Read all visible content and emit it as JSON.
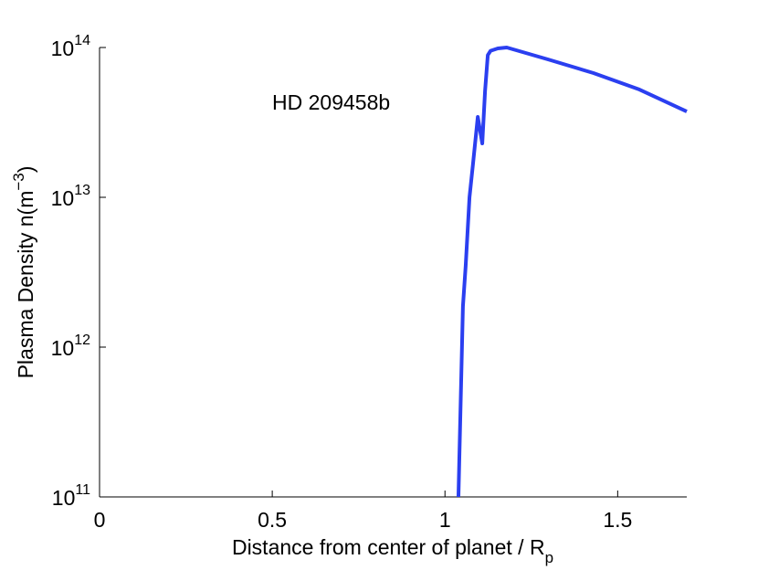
{
  "chart_data": {
    "type": "line",
    "annotation": "HD 209458b",
    "xlabel": {
      "text": "Distance from center of planet / R",
      "sub": "p"
    },
    "ylabel": {
      "text": "Plasma Density n(m",
      "sup": "−3",
      "end": ")"
    },
    "x": [
      1.039,
      1.052,
      1.06,
      1.071,
      1.081,
      1.095,
      1.108,
      1.116,
      1.124,
      1.132,
      1.153,
      1.179,
      1.298,
      1.43,
      1.563,
      1.7
    ],
    "series": [
      {
        "name": "HD 209458b",
        "color": "#2b3ff0",
        "values": [
          100000000000.0,
          1870000000000.0,
          3500000000000.0,
          10000000000000.0,
          16600000000000.0,
          34400000000000.0,
          22900000000000.0,
          51000000000000.0,
          89000000000000.0,
          95000000000000.0,
          98600000000000.0,
          100000000000000.0,
          83300000000000.0,
          67500000000000.0,
          52400000000000.0,
          37400000000000.0
        ]
      }
    ],
    "xlim": [
      0,
      1.7
    ],
    "xticks": [
      0,
      0.5,
      1,
      1.5
    ],
    "ylim": [
      100000000000.0,
      100000000000000.0
    ],
    "ylog": true,
    "yticks": [
      {
        "value": 100000000000.0,
        "label": "10^11"
      },
      {
        "value": 1000000000000.0,
        "label": "10^12"
      },
      {
        "value": 10000000000000.0,
        "label": "10^13"
      },
      {
        "value": 100000000000000.0,
        "label": "10^14"
      }
    ]
  }
}
